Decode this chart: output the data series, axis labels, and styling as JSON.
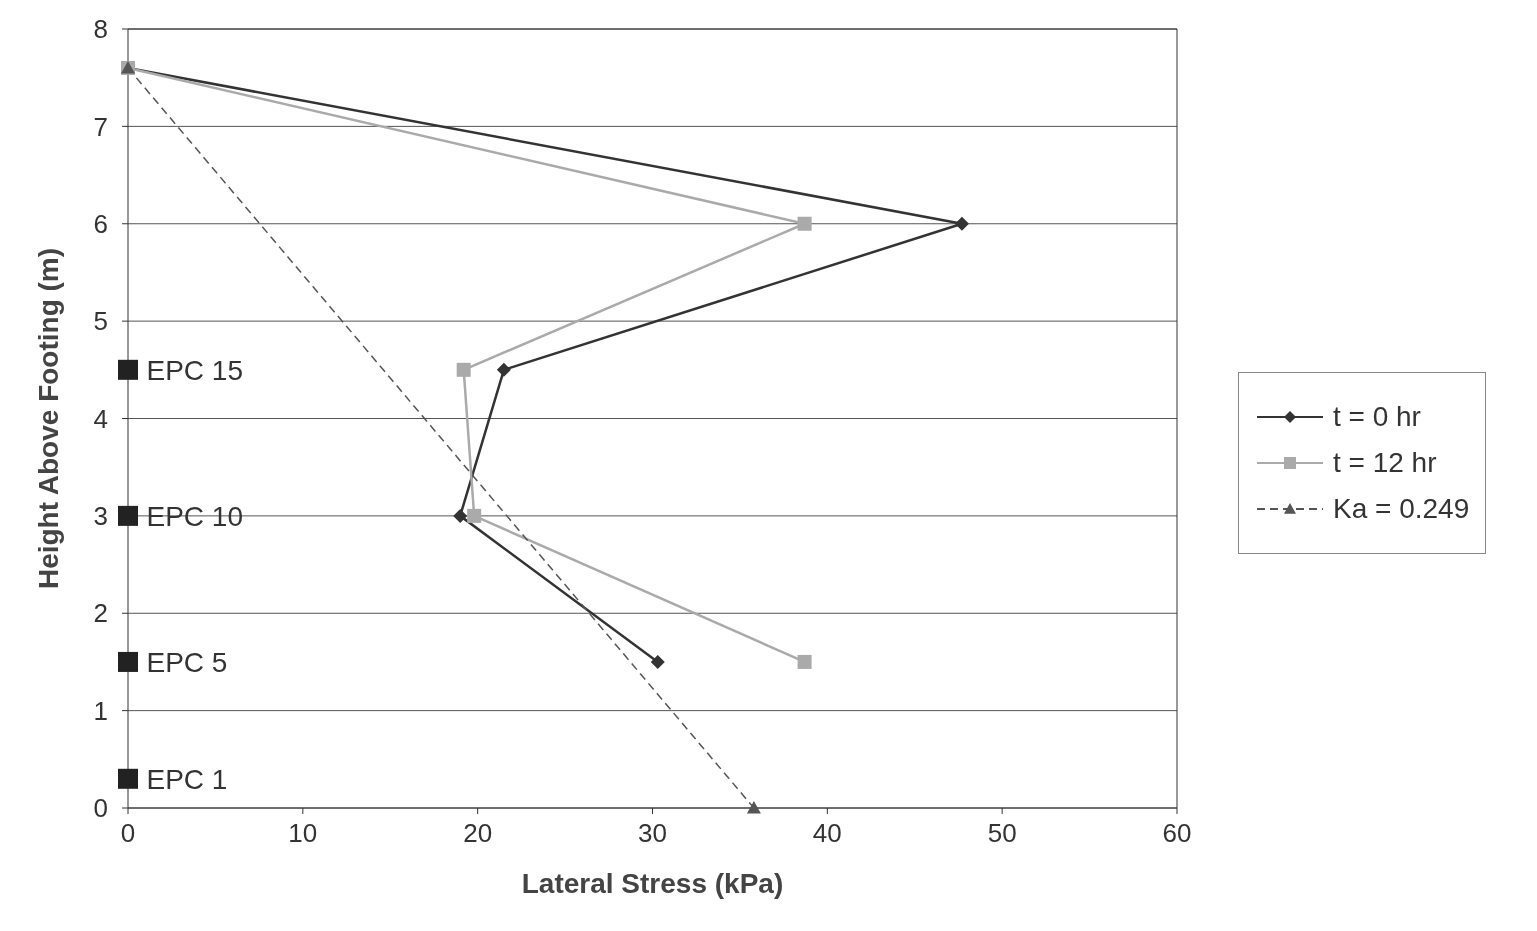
{
  "chart_data": {
    "type": "line",
    "xlabel": "Lateral Stress (kPa)",
    "ylabel": "Height Above Footing (m)",
    "xlim": [
      0,
      60
    ],
    "xticks": [
      0,
      10,
      20,
      30,
      40,
      50,
      60
    ],
    "ylim": [
      0,
      8
    ],
    "yticks": [
      0,
      1,
      2,
      3,
      4,
      5,
      6,
      7,
      8
    ],
    "grid": "y",
    "legend": "right",
    "series": [
      {
        "name": "t = 0 hr",
        "color": "#333333",
        "marker": "diamond",
        "line_style": "solid",
        "x": [
          0,
          47.7,
          21.5,
          19.0,
          30.3
        ],
        "values": [
          7.6,
          6,
          4.5,
          3,
          1.5
        ]
      },
      {
        "name": "t = 12 hr",
        "color": "#aaaaaa",
        "marker": "square",
        "line_style": "solid",
        "x": [
          0,
          38.7,
          19.2,
          19.8,
          38.7
        ],
        "values": [
          7.6,
          6,
          4.5,
          3,
          1.5
        ]
      },
      {
        "name": "Ka = 0.249",
        "color": "#555555",
        "marker": "triangle",
        "line_style": "dashed",
        "x": [
          0,
          35.8
        ],
        "values": [
          7.6,
          0
        ]
      },
      {
        "type": "scatter",
        "color": "#222222",
        "marker": "square",
        "x": [
          0,
          0,
          0,
          0
        ],
        "values": [
          4.5,
          3,
          1.5,
          0.3
        ],
        "value_labels": [
          "EPC 15",
          "EPC 10",
          "EPC 5",
          "EPC 1"
        ]
      }
    ]
  }
}
